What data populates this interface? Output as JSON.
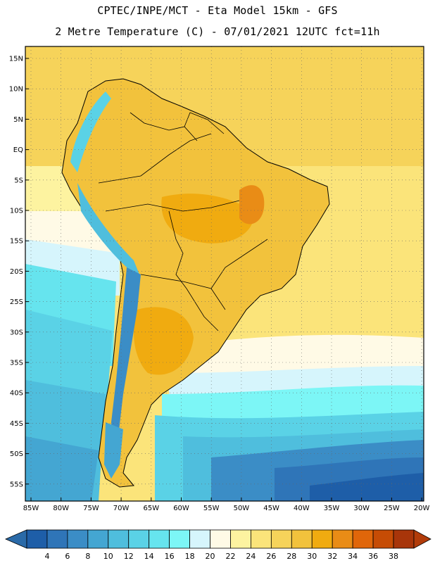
{
  "header": {
    "line1": "CPTEC/INPE/MCT -  Eta Model 15km - GFS",
    "line2": "2 Metre Temperature (C) - 07/01/2021 12UTC fct=11h"
  },
  "map": {
    "region": "South America",
    "lon_labels": [
      "85W",
      "80W",
      "75W",
      "70W",
      "65W",
      "60W",
      "55W",
      "50W",
      "45W",
      "40W",
      "35W",
      "30W",
      "25W",
      "20W"
    ],
    "lat_labels": [
      "15N",
      "10N",
      "5N",
      "EQ",
      "5S",
      "10S",
      "15S",
      "20S",
      "25S",
      "30S",
      "35S",
      "40S",
      "45S",
      "50S",
      "55S"
    ]
  },
  "colorbar": {
    "labels": [
      "4",
      "6",
      "8",
      "10",
      "12",
      "14",
      "16",
      "18",
      "20",
      "22",
      "24",
      "26",
      "28",
      "30",
      "32",
      "34",
      "36",
      "38"
    ],
    "colors": [
      "#1e5ea8",
      "#2f75b8",
      "#3b8dc6",
      "#44a6d2",
      "#4fbedd",
      "#5ad2e6",
      "#66e4ee",
      "#7cf6f6",
      "#d6f5fc",
      "#fffae6",
      "#fdf3a0",
      "#fbe47a",
      "#f6d35a",
      "#f2c23c",
      "#f0ab10",
      "#e98c16",
      "#e0660a",
      "#c64c05",
      "#a8350a"
    ],
    "under_color": "#2a6aa8",
    "over_color": "#b23c0a"
  }
}
